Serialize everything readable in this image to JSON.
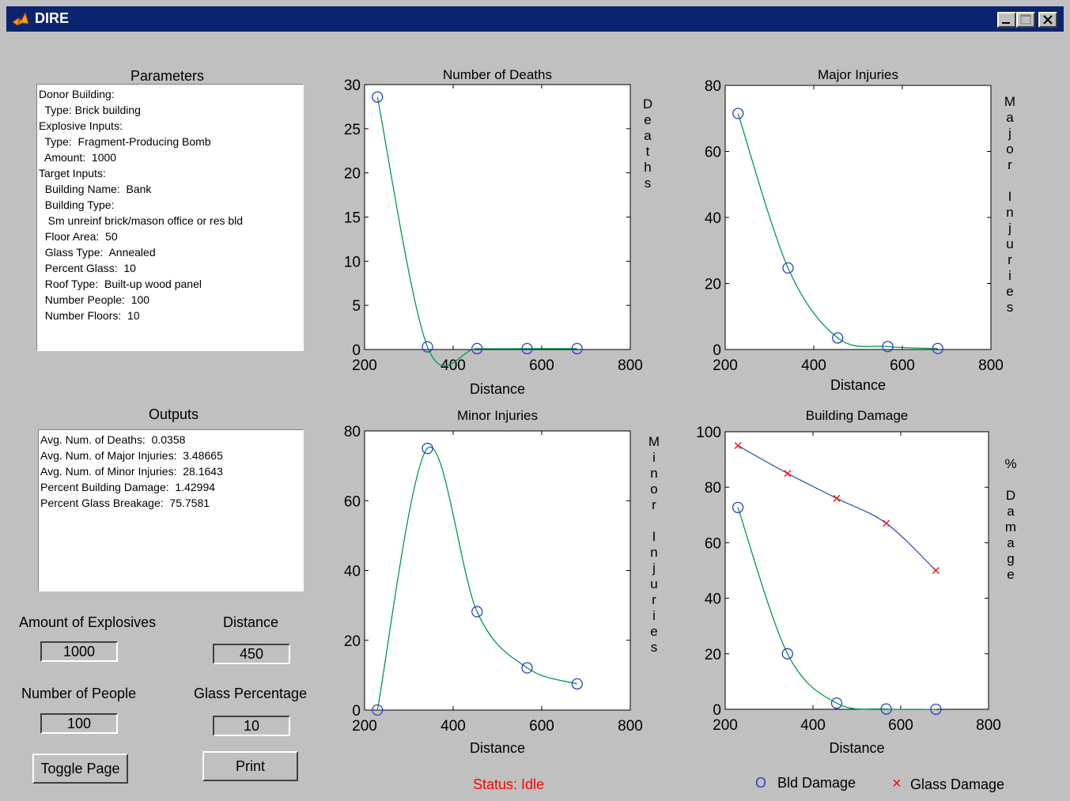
{
  "window": {
    "title": "DIRE"
  },
  "parameters": {
    "heading": "Parameters",
    "lines": [
      "Donor Building:",
      "  Type: Brick building",
      "Explosive Inputs:",
      "  Type:  Fragment-Producing Bomb",
      "  Amount:  1000",
      "Target Inputs:",
      "  Building Name:  Bank",
      "  Building Type:",
      "   Sm unreinf brick/mason office or res bld",
      "  Floor Area:  50",
      "  Glass Type:  Annealed",
      "  Percent Glass:  10",
      "  Roof Type:  Built-up wood panel",
      "  Number People:  100",
      "  Number Floors:  10"
    ]
  },
  "outputs": {
    "heading": "Outputs",
    "lines": [
      "Avg. Num. of Deaths:  0.0358",
      "Avg. Num. of Major Injuries:  3.48665",
      "Avg. Num. of Minor Injuries:  28.1643",
      "Percent Building Damage:  1.42994",
      "Percent Glass Breakage:  75.7581"
    ]
  },
  "controls": {
    "explosives_label": "Amount of Explosives",
    "explosives_value": "1000",
    "distance_label": "Distance",
    "distance_value": "450",
    "people_label": "Number of People",
    "people_value": "100",
    "glass_label": "Glass Percentage",
    "glass_value": "10",
    "toggle_label": "Toggle Page",
    "print_label": "Print"
  },
  "status": "Status:  Idle",
  "legend": {
    "bld_symbol": "O",
    "bld_label": "Bld Damage",
    "glass_symbol": "×",
    "glass_label": "Glass Damage"
  },
  "colors": {
    "title_bar": "#0a2470",
    "curve": "#00994c",
    "marker": "#2a3fc8",
    "glass_curve": "#3355bb",
    "glass_marker": "#ff0000",
    "status": "#ff0000"
  },
  "chart_data": [
    {
      "type": "line",
      "title": "Number of Deaths",
      "xlabel": "Distance",
      "ylabel": "Deaths",
      "xlim": [
        200,
        800
      ],
      "ylim": [
        0,
        30
      ],
      "xticks": [
        200,
        400,
        600,
        800
      ],
      "yticks": [
        0,
        5,
        10,
        15,
        20,
        25,
        30
      ],
      "series": [
        {
          "x": [
            229,
            342,
            454,
            567,
            680
          ],
          "values": [
            28.6,
            0.3,
            0.1,
            0.1,
            0.1
          ]
        }
      ]
    },
    {
      "type": "line",
      "title": "Major Injuries",
      "xlabel": "Distance",
      "ylabel": "Major Injuries",
      "xlim": [
        200,
        800
      ],
      "ylim": [
        0,
        80
      ],
      "xticks": [
        200,
        400,
        600,
        800
      ],
      "yticks": [
        0,
        20,
        40,
        60,
        80
      ],
      "series": [
        {
          "x": [
            229,
            342,
            454,
            567,
            680
          ],
          "values": [
            71.5,
            24.7,
            3.5,
            0.9,
            0.3
          ]
        }
      ]
    },
    {
      "type": "line",
      "title": "Minor Injuries",
      "xlabel": "Distance",
      "ylabel": "Minor Injuries",
      "xlim": [
        200,
        800
      ],
      "ylim": [
        0,
        80
      ],
      "xticks": [
        200,
        400,
        600,
        800
      ],
      "yticks": [
        0,
        20,
        40,
        60,
        80
      ],
      "series": [
        {
          "x": [
            229,
            342,
            454,
            567,
            680
          ],
          "values": [
            0,
            75,
            28.2,
            12.1,
            7.5
          ]
        }
      ]
    },
    {
      "type": "line",
      "title": "Building Damage",
      "xlabel": "Distance",
      "ylabel": "% Damage",
      "xlim": [
        200,
        800
      ],
      "ylim": [
        0,
        100
      ],
      "xticks": [
        200,
        400,
        600,
        800
      ],
      "yticks": [
        0,
        20,
        40,
        60,
        80,
        100
      ],
      "series": [
        {
          "name": "Bld Damage",
          "x": [
            229,
            342,
            454,
            567,
            680
          ],
          "values": [
            72.7,
            20,
            2.2,
            0.1,
            0
          ]
        },
        {
          "name": "Glass Damage",
          "x": [
            229,
            342,
            454,
            567,
            680
          ],
          "values": [
            95,
            85,
            76,
            67,
            50
          ]
        }
      ]
    }
  ]
}
